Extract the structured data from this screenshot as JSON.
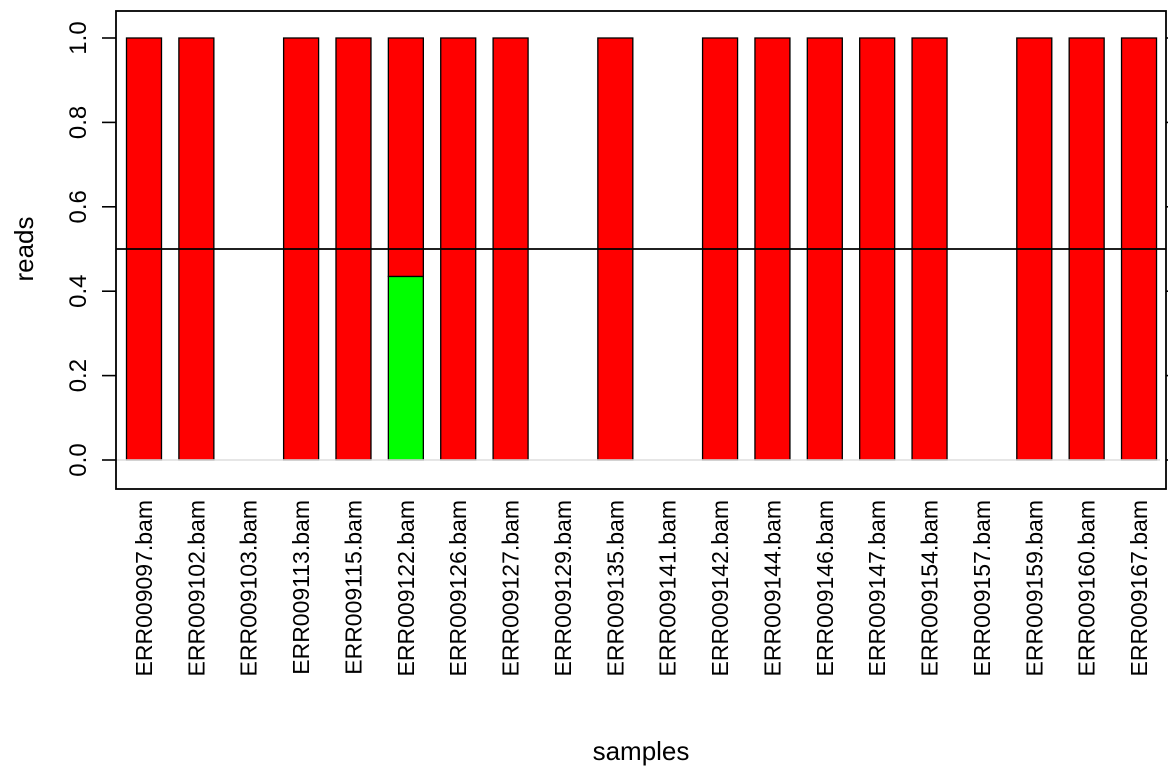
{
  "chart_data": {
    "type": "bar",
    "stacked": true,
    "xlabel": "samples",
    "ylabel": "reads",
    "ylim": [
      0,
      1
    ],
    "yticks": [
      "0.0",
      "0.2",
      "0.4",
      "0.6",
      "0.8",
      "1.0"
    ],
    "reference_line": 0.5,
    "categories": [
      "ERR009097.bam",
      "ERR009102.bam",
      "ERR009103.bam",
      "ERR009113.bam",
      "ERR009115.bam",
      "ERR009122.bam",
      "ERR009126.bam",
      "ERR009127.bam",
      "ERR009129.bam",
      "ERR009135.bam",
      "ERR009141.bam",
      "ERR009142.bam",
      "ERR009144.bam",
      "ERR009146.bam",
      "ERR009147.bam",
      "ERR009154.bam",
      "ERR009157.bam",
      "ERR009159.bam",
      "ERR009160.bam",
      "ERR009167.bam"
    ],
    "series": [
      {
        "color": "#00ff00",
        "values": [
          0,
          0,
          0,
          0,
          0,
          0.435,
          0,
          0,
          0,
          0,
          0,
          0,
          0,
          0,
          0,
          0,
          0,
          0,
          0,
          0
        ]
      },
      {
        "color": "#ff0000",
        "values": [
          1,
          1,
          0,
          1,
          1,
          0.565,
          1,
          1,
          0,
          1,
          0,
          1,
          1,
          1,
          1,
          1,
          0,
          1,
          1,
          1
        ]
      }
    ],
    "grid": false,
    "legend": "none"
  }
}
